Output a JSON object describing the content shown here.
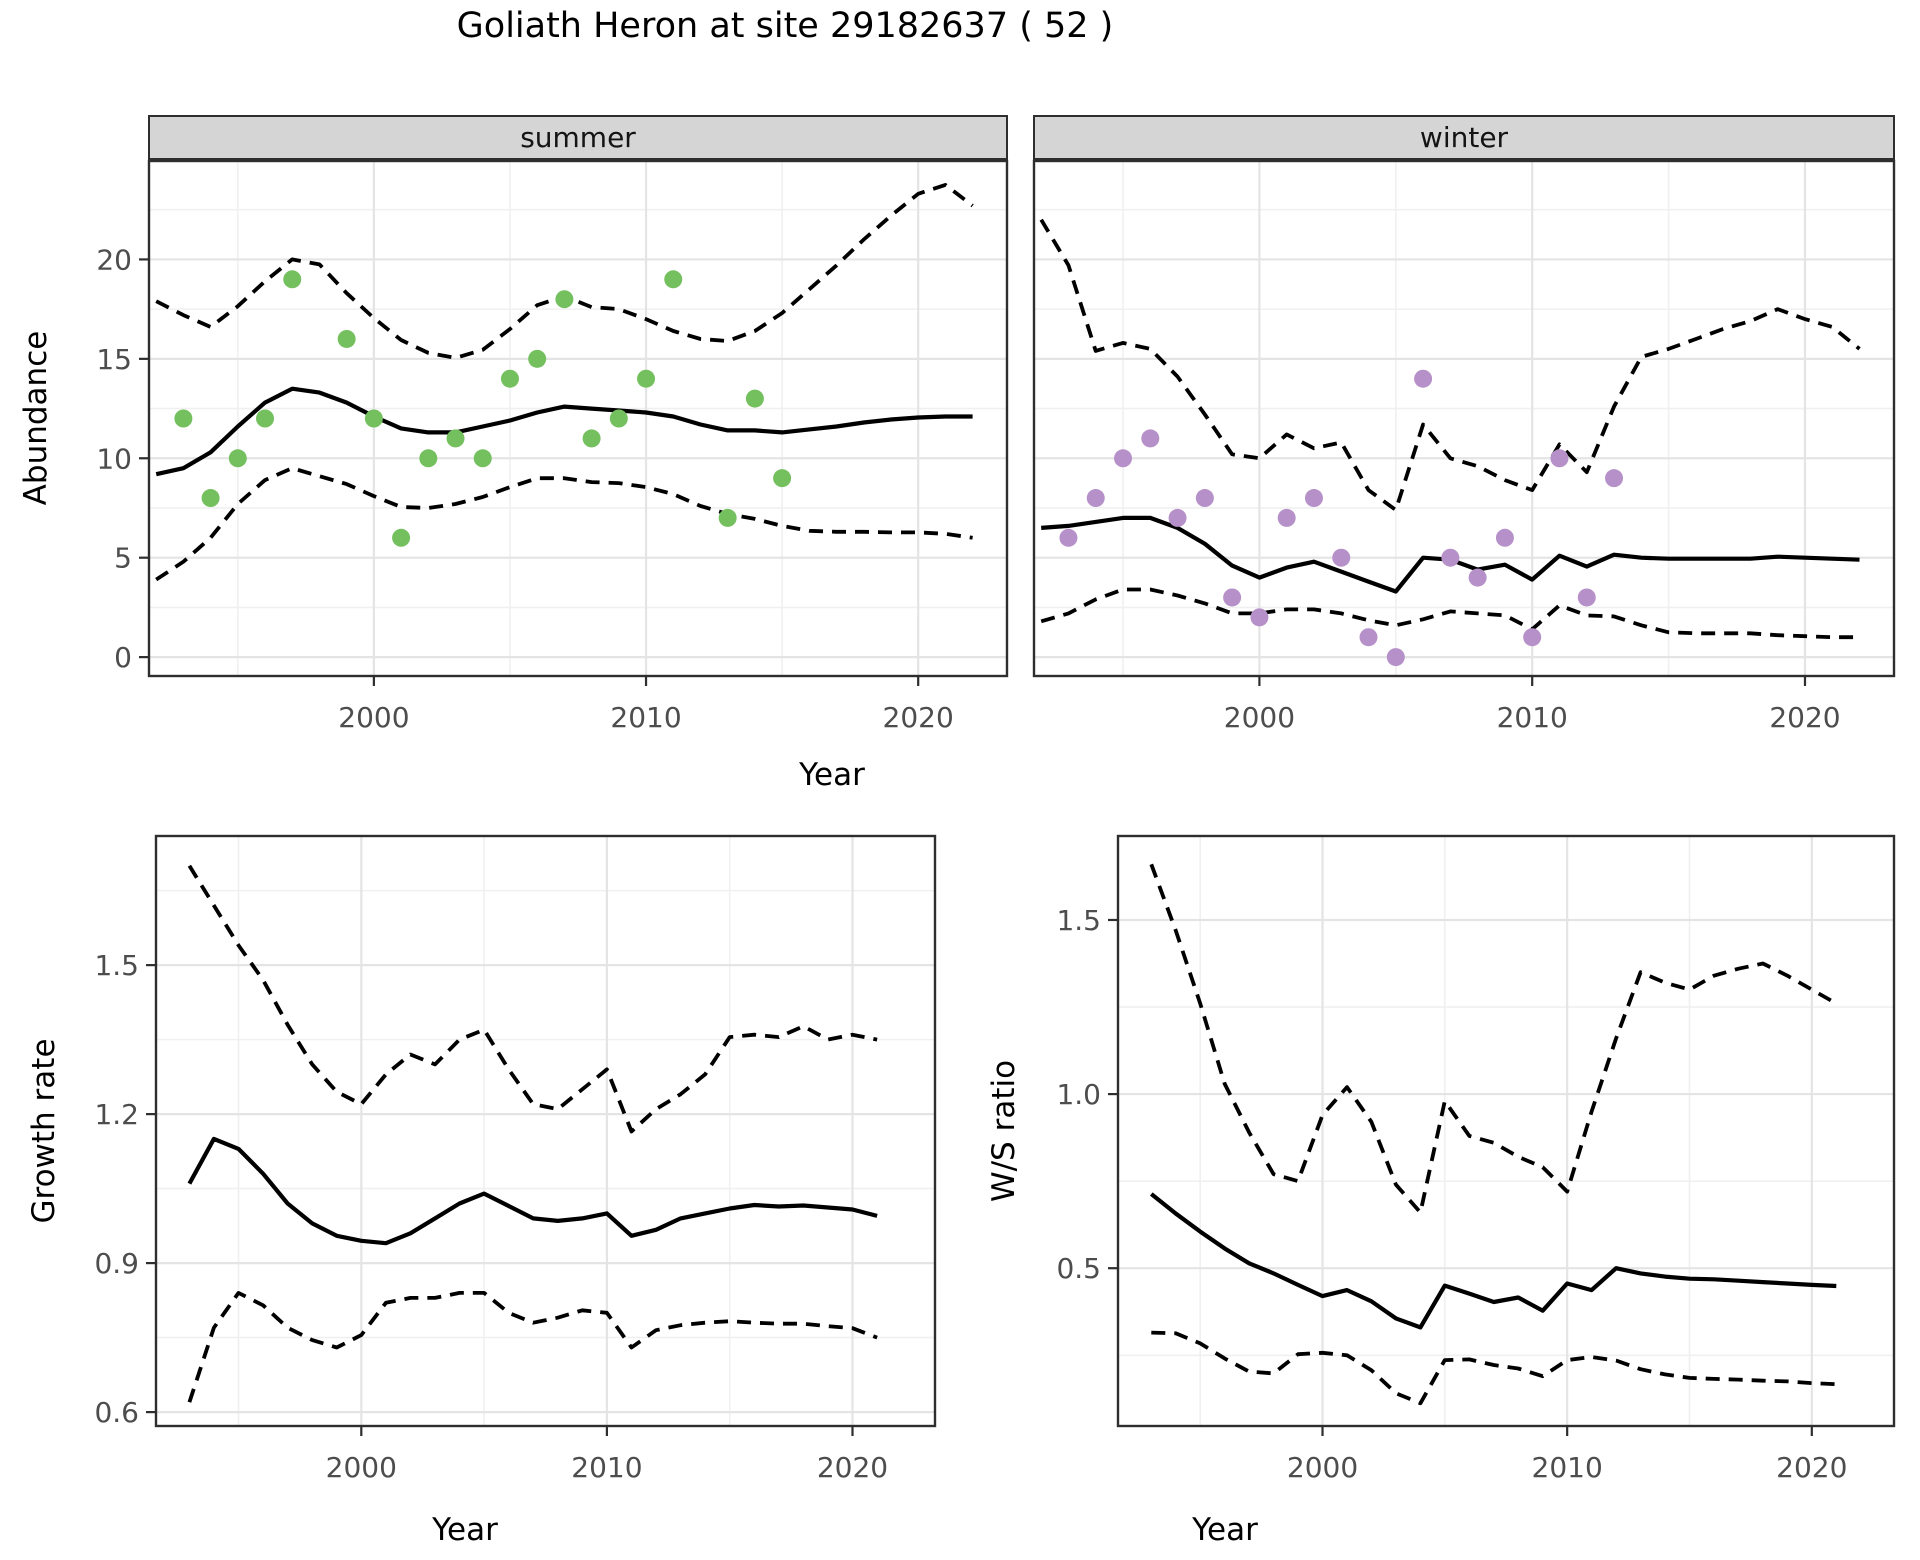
{
  "title": "Goliath Heron at site 29182637 ( 52 )",
  "xlabel_shared": "Year",
  "colors": {
    "summer_points": "#74c05e",
    "winter_points": "#b690c8",
    "line": "#000000",
    "grid_major": "#e4e4e4",
    "grid_minor": "#f0f0f0",
    "panel_border": "#2e2e2e",
    "strip_bg": "#d5d5d5",
    "tick_text": "#4d4d4d",
    "text": "#000000"
  },
  "chart_data": [
    {
      "id": "abundance",
      "type": "line",
      "title": "Goliath Heron at site 29182637 ( 52 )",
      "facets": [
        "summer",
        "winter"
      ],
      "xlabel": "Year",
      "ylabel": "Abundance",
      "xlim": [
        1991.7,
        2023.3
      ],
      "ylim": [
        -1.0,
        25.0
      ],
      "xticks": [
        2000,
        2010,
        2020
      ],
      "xticklabels": [
        "2000",
        "2010",
        "2020"
      ],
      "xticks_minor": [
        1995,
        2005,
        2015
      ],
      "yticks": [
        0,
        5,
        10,
        15,
        20
      ],
      "yticklabels": [
        "0",
        "5",
        "10",
        "15",
        "20"
      ],
      "yticks_minor": [
        2.5,
        7.5,
        12.5,
        17.5,
        22.5
      ],
      "grid": true,
      "legend_position": "none",
      "line_meaning": {
        "solid": "median model estimate",
        "dashed": "95% credible interval",
        "points": "observed counts"
      },
      "series": {
        "summer": {
          "point_color": "#74c05e",
          "points": [
            [
              1993,
              12
            ],
            [
              1994,
              8
            ],
            [
              1995,
              10
            ],
            [
              1996,
              12
            ],
            [
              1997,
              19
            ],
            [
              1999,
              16
            ],
            [
              2000,
              12
            ],
            [
              2001,
              6
            ],
            [
              2002,
              10
            ],
            [
              2003,
              11
            ],
            [
              2004,
              10
            ],
            [
              2005,
              14
            ],
            [
              2006,
              15
            ],
            [
              2007,
              18
            ],
            [
              2008,
              11
            ],
            [
              2009,
              12
            ],
            [
              2010,
              14
            ],
            [
              2011,
              19
            ],
            [
              2013,
              7
            ],
            [
              2014,
              13
            ],
            [
              2015,
              9
            ]
          ],
          "median": {
            "start": 1992,
            "values": [
              9.2,
              9.5,
              10.3,
              11.6,
              12.8,
              13.5,
              13.3,
              12.8,
              12.1,
              11.5,
              11.3,
              11.3,
              11.6,
              11.9,
              12.3,
              12.6,
              12.5,
              12.4,
              12.3,
              12.1,
              11.7,
              11.4,
              11.4,
              11.3,
              11.45,
              11.6,
              11.8,
              11.95,
              12.05,
              12.1,
              12.1
            ]
          },
          "upper": {
            "start": 1992,
            "values": [
              17.9,
              17.2,
              16.6,
              17.65,
              18.9,
              20.0,
              19.75,
              18.3,
              17.05,
              15.95,
              15.3,
              15.05,
              15.45,
              16.5,
              17.7,
              18.15,
              17.6,
              17.5,
              17.0,
              16.4,
              16.0,
              15.9,
              16.4,
              17.3,
              18.5,
              19.7,
              21.0,
              22.2,
              23.3,
              23.75,
              22.7
            ]
          },
          "lower": {
            "start": 1992,
            "values": [
              3.9,
              4.8,
              6.0,
              7.7,
              8.9,
              9.5,
              9.1,
              8.7,
              8.1,
              7.55,
              7.5,
              7.7,
              8.05,
              8.55,
              9.0,
              9.0,
              8.8,
              8.75,
              8.55,
              8.2,
              7.6,
              7.2,
              6.95,
              6.6,
              6.35,
              6.3,
              6.3,
              6.27,
              6.27,
              6.2,
              6.0
            ]
          }
        },
        "winter": {
          "point_color": "#b690c8",
          "points": [
            [
              1993,
              6
            ],
            [
              1994,
              8
            ],
            [
              1995,
              10
            ],
            [
              1996,
              11
            ],
            [
              1997,
              7
            ],
            [
              1998,
              8
            ],
            [
              1999,
              3
            ],
            [
              2000,
              2
            ],
            [
              2001,
              7
            ],
            [
              2002,
              8
            ],
            [
              2003,
              5
            ],
            [
              2004,
              1
            ],
            [
              2005,
              0
            ],
            [
              2006,
              14
            ],
            [
              2007,
              5
            ],
            [
              2008,
              4
            ],
            [
              2009,
              6
            ],
            [
              2010,
              1
            ],
            [
              2011,
              10
            ],
            [
              2012,
              3
            ],
            [
              2013,
              9
            ]
          ],
          "median": {
            "start": 1992,
            "values": [
              6.5,
              6.6,
              6.8,
              7.0,
              7.0,
              6.5,
              5.7,
              4.6,
              4.0,
              4.5,
              4.8,
              4.3,
              3.8,
              3.3,
              5.0,
              4.9,
              4.4,
              4.65,
              3.9,
              5.1,
              4.55,
              5.15,
              5.0,
              4.95,
              4.95,
              4.95,
              4.95,
              5.05,
              5.0,
              4.95,
              4.9
            ]
          },
          "upper": {
            "start": 1992,
            "values": [
              22.0,
              19.7,
              15.4,
              15.8,
              15.5,
              14.1,
              12.2,
              10.2,
              10.0,
              11.2,
              10.5,
              10.8,
              8.4,
              7.4,
              11.7,
              10.0,
              9.6,
              8.9,
              8.4,
              10.7,
              9.3,
              12.6,
              15.1,
              15.5,
              16.0,
              16.5,
              16.9,
              17.5,
              17.0,
              16.6,
              15.5
            ]
          },
          "lower": {
            "start": 1992,
            "values": [
              1.8,
              2.2,
              2.9,
              3.4,
              3.4,
              3.1,
              2.7,
              2.2,
              2.2,
              2.4,
              2.4,
              2.2,
              1.85,
              1.6,
              1.9,
              2.3,
              2.2,
              2.1,
              1.4,
              2.6,
              2.1,
              2.05,
              1.6,
              1.25,
              1.2,
              1.2,
              1.2,
              1.1,
              1.05,
              1.0,
              1.0
            ]
          }
        }
      }
    },
    {
      "id": "growth_rate",
      "type": "line",
      "xlabel": "Year",
      "ylabel": "Growth rate",
      "xlim": [
        1991.6,
        2023.4
      ],
      "ylim": [
        0.57,
        1.762
      ],
      "xticks": [
        2000,
        2010,
        2020
      ],
      "xticklabels": [
        "2000",
        "2010",
        "2020"
      ],
      "xticks_minor": [
        1995,
        2005,
        2015
      ],
      "yticks": [
        0.6,
        0.9,
        1.2,
        1.5
      ],
      "yticklabels": [
        "0.6",
        "0.9",
        "1.2",
        "1.5"
      ],
      "yticks_minor": [
        0.75,
        1.05,
        1.35,
        1.65
      ],
      "grid": true,
      "legend_position": "none",
      "series": {
        "median": {
          "start": 1993,
          "values": [
            1.06,
            1.15,
            1.13,
            1.08,
            1.02,
            0.98,
            0.955,
            0.945,
            0.94,
            0.96,
            0.99,
            1.02,
            1.04,
            1.015,
            0.99,
            0.985,
            0.99,
            1.0,
            0.955,
            0.967,
            0.99,
            1.0,
            1.01,
            1.017,
            1.014,
            1.016,
            1.012,
            1.008,
            0.995
          ]
        },
        "upper": {
          "start": 1993,
          "values": [
            1.7,
            1.62,
            1.54,
            1.47,
            1.38,
            1.3,
            1.245,
            1.22,
            1.28,
            1.32,
            1.3,
            1.35,
            1.37,
            1.29,
            1.22,
            1.21,
            1.25,
            1.29,
            1.165,
            1.21,
            1.24,
            1.28,
            1.355,
            1.36,
            1.355,
            1.377,
            1.35,
            1.36,
            1.35
          ]
        },
        "lower": {
          "start": 1993,
          "values": [
            0.62,
            0.77,
            0.84,
            0.815,
            0.77,
            0.745,
            0.73,
            0.755,
            0.82,
            0.83,
            0.83,
            0.84,
            0.84,
            0.8,
            0.78,
            0.79,
            0.805,
            0.8,
            0.73,
            0.765,
            0.775,
            0.78,
            0.783,
            0.78,
            0.778,
            0.778,
            0.773,
            0.769,
            0.75
          ]
        }
      }
    },
    {
      "id": "ws_ratio",
      "type": "line",
      "xlabel": "Year",
      "ylabel": "W/S ratio",
      "xlim": [
        1991.6,
        2023.4
      ],
      "ylim": [
        0.044,
        1.744
      ],
      "xticks": [
        2000,
        2010,
        2020
      ],
      "xticklabels": [
        "2000",
        "2010",
        "2020"
      ],
      "xticks_minor": [
        1995,
        2005,
        2015
      ],
      "yticks": [
        0.5,
        1.0,
        1.5
      ],
      "yticklabels": [
        "0.5",
        "1.0",
        "1.5"
      ],
      "yticks_minor": [
        0.25,
        0.75,
        1.25
      ],
      "grid": true,
      "legend_position": "none",
      "series": {
        "median": {
          "start": 1993,
          "values": [
            0.713,
            0.657,
            0.605,
            0.557,
            0.514,
            0.485,
            0.452,
            0.42,
            0.437,
            0.405,
            0.356,
            0.33,
            0.45,
            0.427,
            0.403,
            0.416,
            0.378,
            0.456,
            0.437,
            0.5,
            0.485,
            0.476,
            0.47,
            0.468,
            0.464,
            0.46,
            0.456,
            0.452,
            0.449
          ]
        },
        "upper": {
          "start": 1993,
          "values": [
            1.66,
            1.47,
            1.26,
            1.03,
            0.89,
            0.77,
            0.75,
            0.94,
            1.02,
            0.92,
            0.74,
            0.66,
            0.98,
            0.88,
            0.86,
            0.82,
            0.79,
            0.72,
            0.95,
            1.16,
            1.35,
            1.32,
            1.3,
            1.34,
            1.36,
            1.375,
            1.34,
            1.3,
            1.26
          ]
        },
        "lower": {
          "start": 1993,
          "values": [
            0.315,
            0.313,
            0.284,
            0.241,
            0.203,
            0.198,
            0.253,
            0.257,
            0.25,
            0.207,
            0.141,
            0.112,
            0.236,
            0.238,
            0.222,
            0.212,
            0.19,
            0.236,
            0.245,
            0.235,
            0.21,
            0.195,
            0.185,
            0.182,
            0.18,
            0.177,
            0.175,
            0.17,
            0.167
          ]
        }
      }
    }
  ]
}
